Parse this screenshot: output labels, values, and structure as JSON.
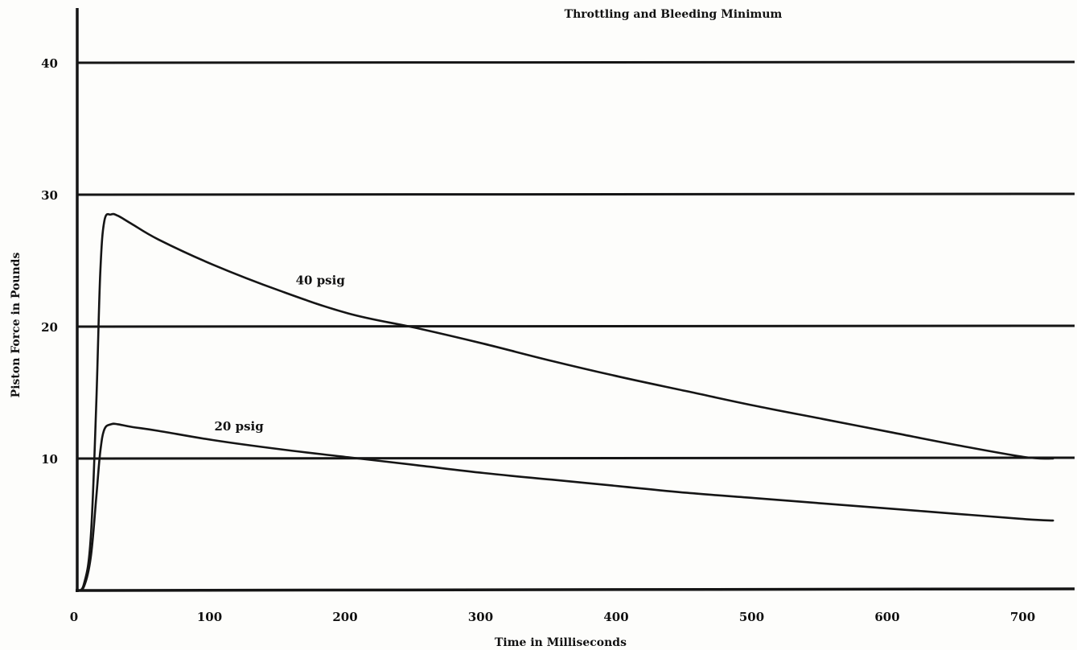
{
  "chart_data": {
    "type": "line",
    "title": "Throttling and Bleeding Minimum",
    "xlabel": "Time in Milliseconds",
    "ylabel": "Piston Force in Pounds",
    "xlim": [
      0,
      740
    ],
    "ylim": [
      0,
      43
    ],
    "x_ticks": [
      "0",
      "100",
      "200",
      "300",
      "400",
      "500",
      "600",
      "700"
    ],
    "y_ticks": [
      "10",
      "20",
      "30",
      "40"
    ],
    "grid": "horizontal",
    "series": [
      {
        "name": "40 psig",
        "x": [
          0,
          5,
          10,
          14,
          17,
          20,
          25,
          30,
          40,
          60,
          100,
          150,
          200,
          250,
          300,
          350,
          400,
          450,
          500,
          550,
          600,
          650,
          700,
          720
        ],
        "y": [
          0,
          0.5,
          4,
          14,
          24,
          28,
          28.5,
          28.4,
          27.8,
          26.6,
          24.7,
          22.7,
          21.0,
          19.9,
          18.7,
          17.4,
          16.2,
          15.1,
          14.0,
          13.0,
          12.0,
          11.0,
          10.1,
          10.0
        ]
      },
      {
        "name": "20 psig",
        "x": [
          0,
          5,
          10,
          14,
          17,
          20,
          25,
          30,
          40,
          60,
          100,
          150,
          200,
          250,
          300,
          350,
          400,
          450,
          500,
          550,
          600,
          650,
          700,
          720
        ],
        "y": [
          0,
          0.3,
          2.5,
          7,
          10.5,
          12.2,
          12.6,
          12.6,
          12.4,
          12.1,
          11.4,
          10.7,
          10.1,
          9.5,
          8.9,
          8.4,
          7.9,
          7.4,
          7.0,
          6.6,
          6.2,
          5.8,
          5.4,
          5.3
        ]
      }
    ]
  }
}
